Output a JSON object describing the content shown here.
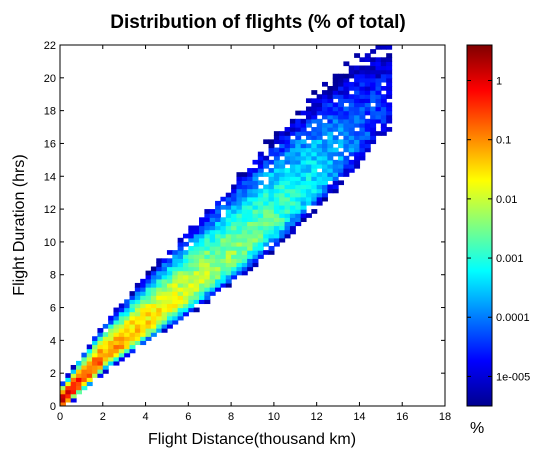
{
  "chart_data": {
    "type": "heatmap",
    "title": "Distribution of flights (% of total)",
    "xlabel": "Flight Distance(thousand km)",
    "ylabel": "Flight Duration (hrs)",
    "xlim": [
      0,
      18
    ],
    "ylim": [
      0,
      22
    ],
    "xticks": [
      "0",
      "2",
      "4",
      "6",
      "8",
      "10",
      "12",
      "14",
      "16",
      "18"
    ],
    "yticks": [
      "0",
      "2",
      "4",
      "6",
      "8",
      "10",
      "12",
      "14",
      "16",
      "18",
      "20",
      "22"
    ],
    "colorbar": {
      "scale": "log",
      "label": "%",
      "ticks": [
        "1",
        "0.1",
        "0.01",
        "0.001",
        "0.0001",
        "1e-005"
      ],
      "colormap": "jet",
      "range_exponent": [
        -5.5,
        0.6
      ]
    },
    "grid": false,
    "density_model": {
      "description": "cells per 0.25 thousand km x 0.25 hr; log10(%) peak along ridge",
      "ridge": [
        [
          0,
          0.3
        ],
        [
          2,
          2.9
        ],
        [
          4,
          4.9
        ],
        [
          6,
          6.9
        ],
        [
          8,
          9.0
        ],
        [
          10,
          11.2
        ],
        [
          12,
          13.7
        ],
        [
          14,
          16.3
        ]
      ],
      "peak_log10": [
        [
          0,
          0.2
        ],
        [
          1,
          -0.4
        ],
        [
          2,
          -0.9
        ],
        [
          4,
          -1.5
        ],
        [
          6,
          -2.0
        ],
        [
          8,
          -2.4
        ],
        [
          10,
          -2.8
        ],
        [
          12,
          -3.4
        ],
        [
          14,
          -4.2
        ]
      ]
    }
  }
}
